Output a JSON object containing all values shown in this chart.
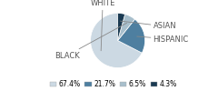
{
  "labels": [
    "WHITE",
    "HISPANIC",
    "BLACK",
    "ASIAN"
  ],
  "values": [
    67.4,
    21.7,
    6.5,
    4.3
  ],
  "colors": [
    "#ccd9e3",
    "#4e7fa0",
    "#a8bfcc",
    "#1a3a52"
  ],
  "legend_labels": [
    "67.4%",
    "21.7%",
    "6.5%",
    "4.3%"
  ],
  "startangle": 90,
  "background_color": "#ffffff",
  "font_size": 6.0,
  "label_color": "#555555"
}
